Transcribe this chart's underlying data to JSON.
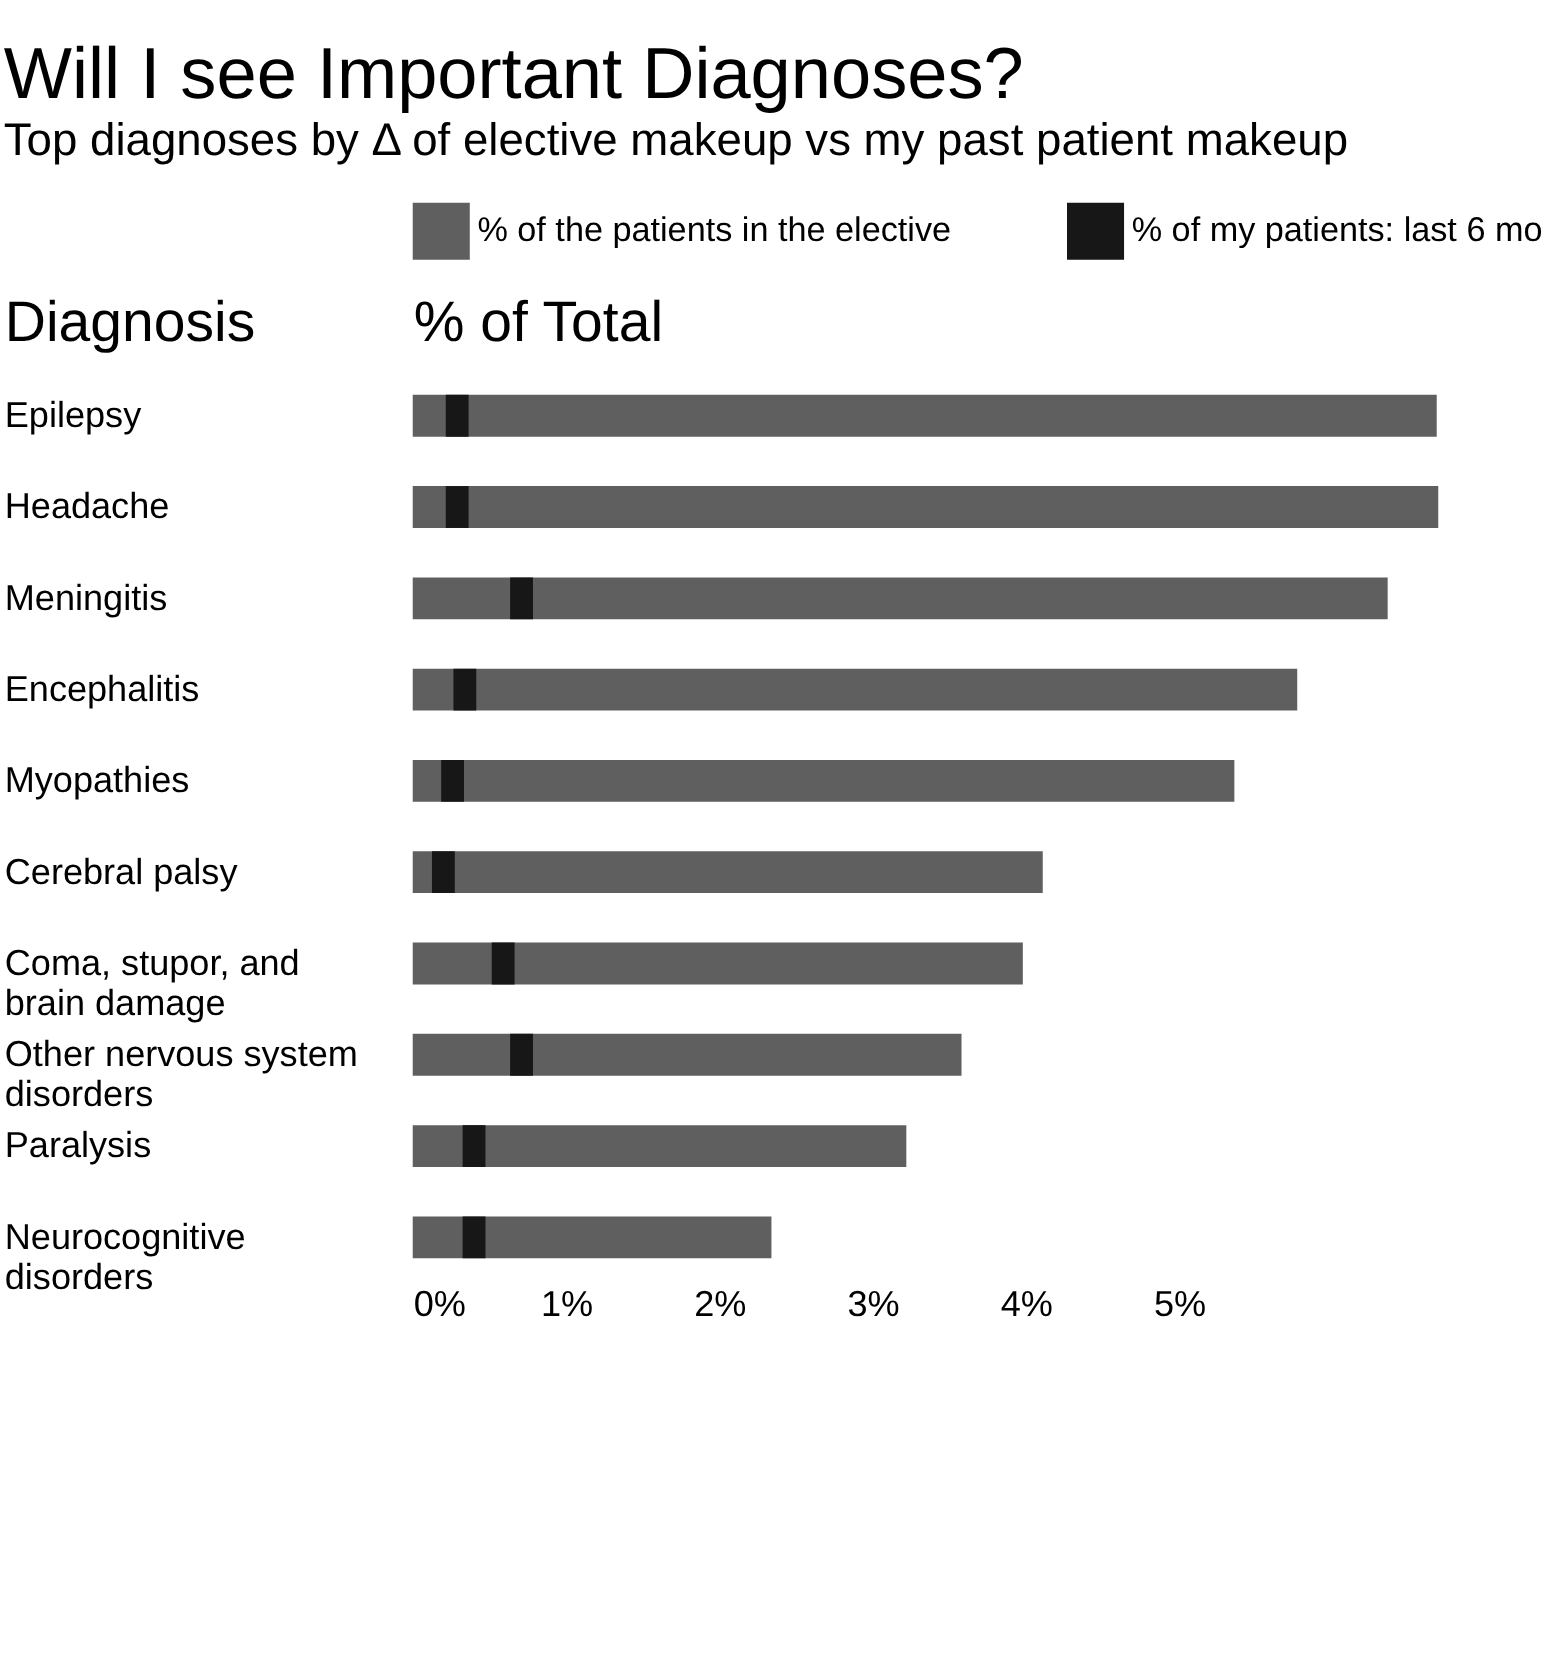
{
  "chart_data": {
    "type": "bar",
    "orientation": "horizontal",
    "title": "Will I see Important Diagnoses?",
    "subtitle": "Top diagnoses by Δ of elective makeup vs my past patient makeup",
    "xlabel": "% of Total",
    "ylabel": "Diagnosis",
    "categories": [
      "Epilepsy",
      "Headache",
      "Meningitis",
      "Encephalitis",
      "Myopathies",
      "Cerebral palsy",
      "Coma, stupor, and brain damage",
      "Other nervous system disorders",
      "Paralysis",
      "Neurocognitive disorders"
    ],
    "series": [
      {
        "name": "% of the patients in the elective",
        "color": "#5f5f5f",
        "values": [
          6.68,
          6.69,
          6.36,
          5.77,
          5.36,
          4.11,
          3.98,
          3.58,
          3.22,
          2.34
        ]
      },
      {
        "name": "% of my patients: last 6 mo",
        "type": "scatter",
        "color": "#171717",
        "values": [
          0.29,
          0.29,
          0.71,
          0.34,
          0.26,
          0.2,
          0.59,
          0.71,
          0.4,
          0.4
        ]
      }
    ],
    "xlim": [
      0,
      6.7
    ],
    "xticks": [
      {
        "value": 0,
        "label": "0%"
      },
      {
        "value": 1,
        "label": "1%"
      },
      {
        "value": 2,
        "label": "2%"
      },
      {
        "value": 3,
        "label": "3%"
      },
      {
        "value": 4,
        "label": "4%"
      },
      {
        "value": 5,
        "label": "5%"
      }
    ],
    "grid": false,
    "legend": "top"
  }
}
